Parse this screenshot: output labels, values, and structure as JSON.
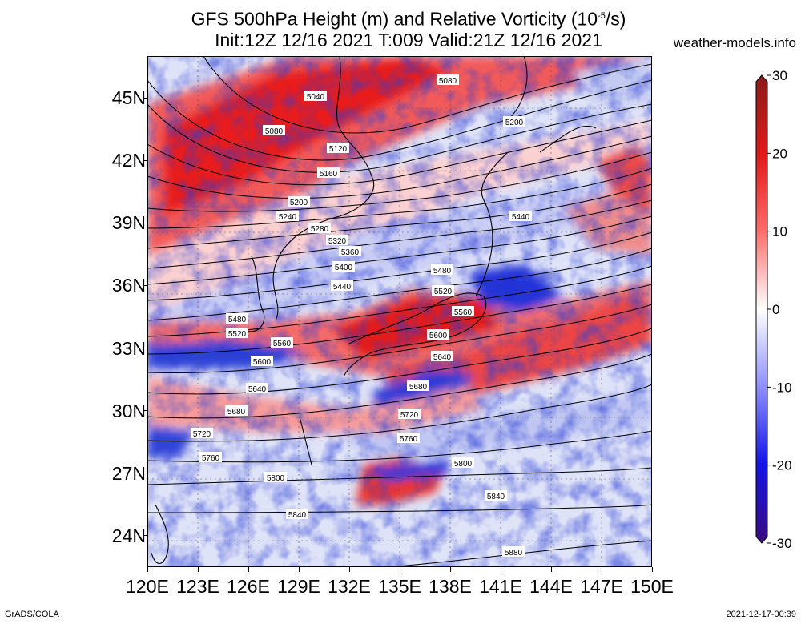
{
  "header": {
    "title_main": "GFS 500hPa Height (m) and Relative Vorticity (10",
    "title_sup": "-5",
    "title_end": "/s)",
    "subtitle": "Init:12Z 12/16 2021 T:009 Valid:21Z 12/16 2021",
    "site": "weather-models.info"
  },
  "footer": {
    "software": "GrADS/COLA",
    "timestamp": "2021-12-17-00:39"
  },
  "map": {
    "lon_range": [
      120,
      150
    ],
    "lat_range": [
      22.5,
      47
    ],
    "lat_labels": [
      "45N",
      "42N",
      "39N",
      "36N",
      "33N",
      "30N",
      "27N",
      "24N"
    ],
    "lon_labels": [
      "120E",
      "123E",
      "126E",
      "129E",
      "132E",
      "135E",
      "138E",
      "141E",
      "144E",
      "147E",
      "150E"
    ],
    "contour_labels": [
      "5040",
      "5080",
      "5080",
      "5120",
      "5160",
      "5200",
      "5200",
      "5240",
      "5280",
      "5320",
      "5360",
      "5400",
      "5440",
      "5440",
      "5480",
      "5480",
      "5520",
      "5520",
      "5560",
      "5560",
      "5600",
      "5600",
      "5640",
      "5640",
      "5680",
      "5680",
      "5720",
      "5720",
      "5760",
      "5760",
      "5800",
      "5800",
      "5840",
      "5840",
      "5880"
    ]
  },
  "colorbar": {
    "ticks": [
      "30",
      "20",
      "10",
      "0",
      "-10",
      "-20",
      "-30"
    ],
    "colors": [
      "#8a1a1a",
      "#e11919",
      "#ff6a6a",
      "#ffffff",
      "#8c8cff",
      "#1414e6",
      "#3a0a80"
    ]
  }
}
